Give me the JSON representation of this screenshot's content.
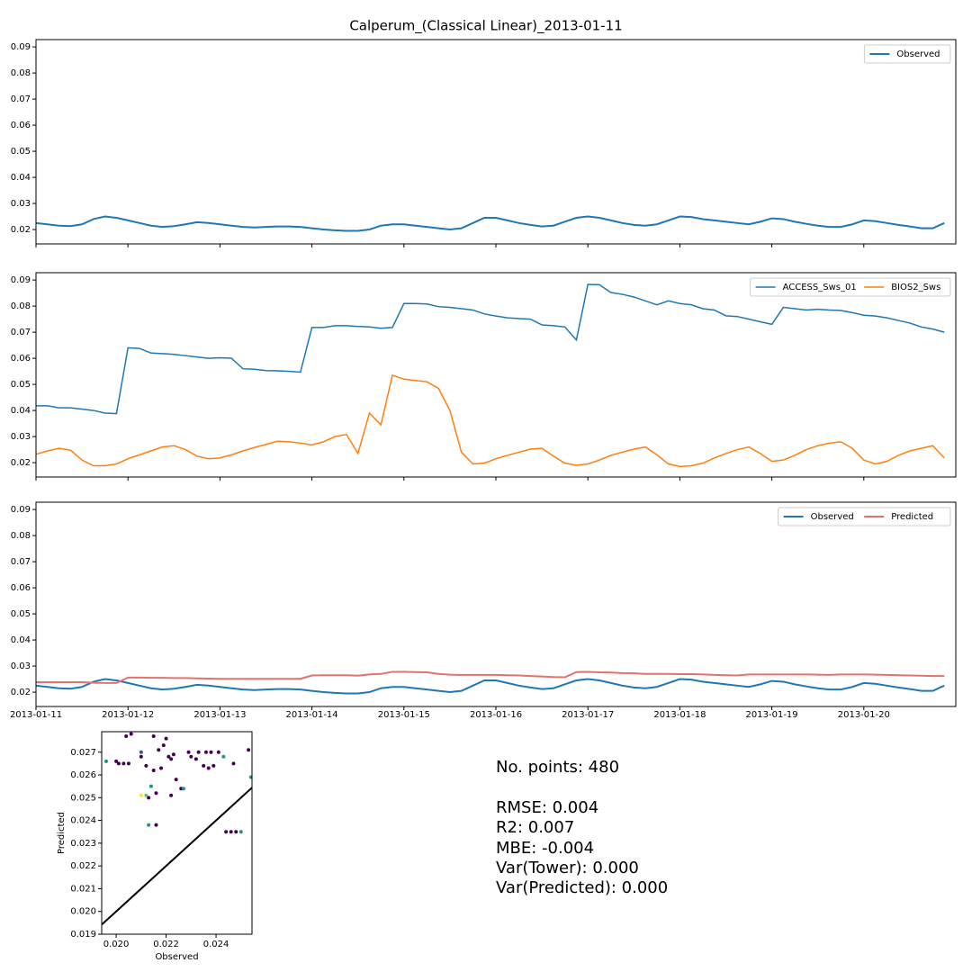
{
  "title": "Calperum_(Classical Linear)_2013-01-11",
  "stats": [
    "No. points: 480",
    "RMSE: 0.004",
    "R2: 0.007",
    "MBE: -0.004",
    "Var(Tower): 0.000",
    "Var(Predicted): 0.000"
  ],
  "chart_data": [
    {
      "type": "line",
      "ylim": [
        0.0145,
        0.0928
      ],
      "yticks": [
        0.02,
        0.03,
        0.04,
        0.05,
        0.06,
        0.07,
        0.08,
        0.09
      ],
      "legend": "upper right",
      "series": [
        {
          "name": "Observed",
          "color": "#1f77b4",
          "width": 2,
          "values": [
            0.0225,
            0.022,
            0.0215,
            0.0213,
            0.022,
            0.024,
            0.025,
            0.0245,
            0.0235,
            0.0225,
            0.0215,
            0.021,
            0.0213,
            0.022,
            0.0228,
            0.0225,
            0.022,
            0.0215,
            0.021,
            0.0208,
            0.021,
            0.0212,
            0.0212,
            0.021,
            0.0205,
            0.02,
            0.0197,
            0.0195,
            0.0195,
            0.02,
            0.0215,
            0.022,
            0.022,
            0.0215,
            0.021,
            0.0205,
            0.02,
            0.0205,
            0.0225,
            0.0245,
            0.0245,
            0.0235,
            0.0225,
            0.0218,
            0.0212,
            0.0215,
            0.023,
            0.0245,
            0.025,
            0.0245,
            0.0235,
            0.0225,
            0.0218,
            0.0215,
            0.022,
            0.0235,
            0.025,
            0.0248,
            0.024,
            0.0235,
            0.023,
            0.0225,
            0.022,
            0.023,
            0.0243,
            0.024,
            0.023,
            0.0222,
            0.0215,
            0.021,
            0.021,
            0.022,
            0.0235,
            0.0232,
            0.0225,
            0.0218,
            0.0212,
            0.0205,
            0.0205,
            0.0225
          ]
        }
      ]
    },
    {
      "type": "line",
      "ylim": [
        0.0145,
        0.0928
      ],
      "yticks": [
        0.02,
        0.03,
        0.04,
        0.05,
        0.06,
        0.07,
        0.08,
        0.09
      ],
      "legend": "upper right",
      "series": [
        {
          "name": "ACCESS_Sws_01",
          "color": "#1f77b4",
          "width": 1.5,
          "values": [
            0.0418,
            0.0418,
            0.041,
            0.041,
            0.0405,
            0.04,
            0.039,
            0.0388,
            0.064,
            0.0638,
            0.062,
            0.0618,
            0.0615,
            0.061,
            0.0605,
            0.06,
            0.0602,
            0.06,
            0.056,
            0.0558,
            0.0553,
            0.0552,
            0.055,
            0.0547,
            0.0718,
            0.0718,
            0.0725,
            0.0725,
            0.0722,
            0.072,
            0.0715,
            0.0718,
            0.081,
            0.081,
            0.0808,
            0.0798,
            0.0795,
            0.079,
            0.0785,
            0.077,
            0.0762,
            0.0755,
            0.0752,
            0.075,
            0.0728,
            0.0725,
            0.072,
            0.067,
            0.0883,
            0.0882,
            0.0852,
            0.0845,
            0.0835,
            0.082,
            0.0805,
            0.082,
            0.081,
            0.0805,
            0.079,
            0.0785,
            0.0763,
            0.076,
            0.075,
            0.074,
            0.073,
            0.0795,
            0.079,
            0.0785,
            0.0788,
            0.0785,
            0.0783,
            0.0775,
            0.0765,
            0.0762,
            0.0755,
            0.0745,
            0.0735,
            0.072,
            0.0712,
            0.07
          ]
        },
        {
          "name": "BIOS2_Sws",
          "color": "#ff7f0e",
          "width": 1.5,
          "values": [
            0.0232,
            0.0245,
            0.0255,
            0.0248,
            0.021,
            0.0188,
            0.0188,
            0.0195,
            0.0215,
            0.023,
            0.0245,
            0.026,
            0.0265,
            0.025,
            0.0225,
            0.0215,
            0.0218,
            0.023,
            0.0245,
            0.0258,
            0.027,
            0.0282,
            0.028,
            0.0275,
            0.0268,
            0.028,
            0.03,
            0.0308,
            0.0235,
            0.039,
            0.0345,
            0.0535,
            0.052,
            0.0515,
            0.051,
            0.0485,
            0.04,
            0.024,
            0.0195,
            0.0198,
            0.0215,
            0.0228,
            0.024,
            0.0252,
            0.0255,
            0.0225,
            0.0198,
            0.019,
            0.0195,
            0.021,
            0.0228,
            0.024,
            0.0252,
            0.026,
            0.023,
            0.0195,
            0.0185,
            0.0188,
            0.0198,
            0.0218,
            0.0235,
            0.025,
            0.026,
            0.0235,
            0.0205,
            0.021,
            0.0228,
            0.025,
            0.0265,
            0.0275,
            0.028,
            0.0255,
            0.021,
            0.0195,
            0.0205,
            0.0228,
            0.0245,
            0.0255,
            0.0265,
            0.0218
          ]
        }
      ]
    },
    {
      "type": "line",
      "ylim": [
        0.0145,
        0.0928
      ],
      "yticks": [
        0.02,
        0.03,
        0.04,
        0.05,
        0.06,
        0.07,
        0.08,
        0.09
      ],
      "legend": "upper right",
      "categories": [
        "2013-01-11",
        null,
        null,
        null,
        null,
        null,
        null,
        null,
        "2013-01-12",
        null,
        null,
        null,
        null,
        null,
        null,
        null,
        "2013-01-13",
        null,
        null,
        null,
        null,
        null,
        null,
        null,
        "2013-01-14",
        null,
        null,
        null,
        null,
        null,
        null,
        null,
        "2013-01-15",
        null,
        null,
        null,
        null,
        null,
        null,
        null,
        "2013-01-16",
        null,
        null,
        null,
        null,
        null,
        null,
        null,
        "2013-01-17",
        null,
        null,
        null,
        null,
        null,
        null,
        null,
        "2013-01-18",
        null,
        null,
        null,
        null,
        null,
        null,
        null,
        "2013-01-19",
        null,
        null,
        null,
        null,
        null,
        null,
        null,
        "2013-01-20",
        null,
        null,
        null,
        null,
        null,
        null,
        null
      ],
      "series": [
        {
          "name": "Observed",
          "color": "#1f77b4",
          "width": 2,
          "values": [
            0.0225,
            0.022,
            0.0215,
            0.0213,
            0.022,
            0.024,
            0.025,
            0.0245,
            0.0235,
            0.0225,
            0.0215,
            0.021,
            0.0213,
            0.022,
            0.0228,
            0.0225,
            0.022,
            0.0215,
            0.021,
            0.0208,
            0.021,
            0.0212,
            0.0212,
            0.021,
            0.0205,
            0.02,
            0.0197,
            0.0195,
            0.0195,
            0.02,
            0.0215,
            0.022,
            0.022,
            0.0215,
            0.021,
            0.0205,
            0.02,
            0.0205,
            0.0225,
            0.0245,
            0.0245,
            0.0235,
            0.0225,
            0.0218,
            0.0212,
            0.0215,
            0.023,
            0.0245,
            0.025,
            0.0245,
            0.0235,
            0.0225,
            0.0218,
            0.0215,
            0.022,
            0.0235,
            0.025,
            0.0248,
            0.024,
            0.0235,
            0.023,
            0.0225,
            0.022,
            0.023,
            0.0243,
            0.024,
            0.023,
            0.0222,
            0.0215,
            0.021,
            0.021,
            0.022,
            0.0235,
            0.0232,
            0.0225,
            0.0218,
            0.0212,
            0.0205,
            0.0205,
            0.0225
          ]
        },
        {
          "name": "Predicted",
          "color": "#e0736f",
          "width": 2,
          "values": [
            0.0238,
            0.0238,
            0.0238,
            0.0238,
            0.0238,
            0.0236,
            0.0235,
            0.0235,
            0.0256,
            0.0256,
            0.0255,
            0.0255,
            0.0254,
            0.0254,
            0.0253,
            0.0252,
            0.0251,
            0.0251,
            0.0251,
            0.0251,
            0.0251,
            0.0251,
            0.0251,
            0.0251,
            0.0264,
            0.0265,
            0.0265,
            0.0265,
            0.0263,
            0.0268,
            0.027,
            0.0278,
            0.0278,
            0.0277,
            0.0276,
            0.027,
            0.0267,
            0.0266,
            0.0266,
            0.0266,
            0.0266,
            0.0265,
            0.0264,
            0.0262,
            0.026,
            0.0258,
            0.0257,
            0.0277,
            0.0278,
            0.0276,
            0.0275,
            0.0273,
            0.0272,
            0.027,
            0.027,
            0.027,
            0.0269,
            0.0269,
            0.0268,
            0.0266,
            0.0265,
            0.0264,
            0.0268,
            0.0268,
            0.0268,
            0.0268,
            0.0268,
            0.0268,
            0.0267,
            0.0266,
            0.0268,
            0.0268,
            0.0268,
            0.0267,
            0.0266,
            0.0265,
            0.0264,
            0.0263,
            0.0262,
            0.0262
          ]
        }
      ]
    },
    {
      "type": "scatter",
      "x_label": "Observed",
      "y_label": "Predicted",
      "xlim": [
        0.01942,
        0.02544
      ],
      "ylim": [
        0.019,
        0.0279
      ],
      "xticks": [
        {
          "value": 0.02,
          "label": "0.020"
        },
        {
          "value": 0.022,
          "label": "0.022"
        },
        {
          "value": 0.024,
          "label": "0.024"
        }
      ],
      "yticks": [
        0.019,
        {
          "value": 0.02,
          "label": "0.020"
        },
        0.021,
        0.022,
        0.023,
        0.024,
        0.025,
        0.026,
        0.027
      ],
      "x": [
        0.0196,
        0.02,
        0.0201,
        0.0203,
        0.0205,
        0.0204,
        0.0206,
        0.021,
        0.021,
        0.021,
        0.0212,
        0.0213,
        0.0214,
        0.0213,
        0.0216,
        0.0212,
        0.0215,
        0.0216,
        0.0218,
        0.0219,
        0.0221,
        0.0222,
        0.0223,
        0.0224,
        0.0222,
        0.0226,
        0.0227,
        0.0229,
        0.023,
        0.0232,
        0.0233,
        0.0235,
        0.0236,
        0.0237,
        0.0238,
        0.0239,
        0.0241,
        0.0243,
        0.0244,
        0.0246,
        0.0247,
        0.0248,
        0.025,
        0.0253,
        0.0254,
        0.0215,
        0.022,
        0.0217
      ],
      "values": [
        0.0266,
        0.0266,
        0.0265,
        0.0265,
        0.0265,
        0.0277,
        0.0278,
        0.027,
        0.0268,
        0.0251,
        0.0251,
        0.025,
        0.0255,
        0.0238,
        0.0238,
        0.0264,
        0.0262,
        0.0252,
        0.0263,
        0.0273,
        0.0268,
        0.0267,
        0.0269,
        0.0258,
        0.0251,
        0.0254,
        0.0254,
        0.027,
        0.0268,
        0.0267,
        0.027,
        0.0264,
        0.027,
        0.0263,
        0.027,
        0.0264,
        0.027,
        0.0268,
        0.0235,
        0.0235,
        0.0265,
        0.0235,
        0.0235,
        0.0271,
        0.0259,
        0.0277,
        0.0276,
        0.0271
      ],
      "colors": [
        "#21918c",
        "#440154",
        "#440154",
        "#440154",
        "#440154",
        "#440154",
        "#440154",
        "#3b528b",
        "#440154",
        "#fde725",
        "#5ec962",
        "#440154",
        "#21918c",
        "#21918c",
        "#440154",
        "#440154",
        "#440154",
        "#440154",
        "#440154",
        "#440154",
        "#440154",
        "#440154",
        "#440154",
        "#440154",
        "#440154",
        "#440154",
        "#21918c",
        "#440154",
        "#440154",
        "#440154",
        "#440154",
        "#440154",
        "#440154",
        "#440154",
        "#440154",
        "#440154",
        "#440154",
        "#21918c",
        "#440154",
        "#440154",
        "#440154",
        "#440154",
        "#21918c",
        "#440154",
        "#21918c",
        "#440154",
        "#440154",
        "#440154"
      ],
      "line": {
        "color": "#000000",
        "x": [
          0.01942,
          0.02544
        ],
        "values": [
          0.01942,
          0.02544
        ]
      }
    }
  ]
}
